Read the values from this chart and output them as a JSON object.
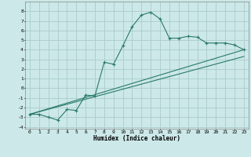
{
  "xlabel": "Humidex (Indice chaleur)",
  "background_color": "#cce8e8",
  "grid_color": "#aacccc",
  "line_color": "#2a7a6a",
  "xlim": [
    -0.5,
    23.5
  ],
  "ylim": [
    -4.2,
    9.0
  ],
  "xticks": [
    0,
    1,
    2,
    3,
    4,
    5,
    6,
    7,
    8,
    9,
    10,
    11,
    12,
    13,
    14,
    15,
    16,
    17,
    18,
    19,
    20,
    21,
    22,
    23
  ],
  "yticks": [
    -4,
    -3,
    -2,
    -1,
    0,
    1,
    2,
    3,
    4,
    5,
    6,
    7,
    8
  ],
  "curve1_x": [
    0,
    1,
    2,
    3,
    4,
    5,
    6,
    7,
    8,
    9,
    10,
    11,
    12,
    13,
    14,
    15,
    16,
    17,
    18,
    19,
    20,
    21,
    22,
    23
  ],
  "curve1_y": [
    -2.7,
    -2.7,
    -3.0,
    -3.3,
    -2.2,
    -2.3,
    -0.7,
    -0.8,
    2.7,
    2.5,
    4.4,
    6.4,
    7.6,
    7.9,
    7.2,
    5.2,
    5.2,
    5.4,
    5.3,
    4.7,
    4.7,
    4.7,
    4.5,
    4.0
  ],
  "curve2_x": [
    0,
    23
  ],
  "curve2_y": [
    -2.7,
    4.0
  ],
  "curve3_x": [
    0,
    23
  ],
  "curve3_y": [
    -2.7,
    3.3
  ],
  "tick_fontsize": 4.5,
  "xlabel_fontsize": 5.5
}
